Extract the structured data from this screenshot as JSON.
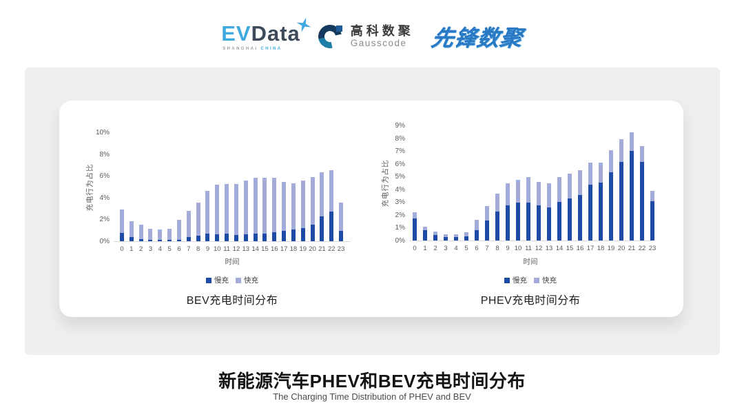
{
  "header": {
    "evdata": {
      "ev": "EV",
      "data": "Data",
      "sub_left": "SHANGHAI",
      "sub_right": "CHINA"
    },
    "gausscode": {
      "cn": "高科数聚",
      "en": "Gausscode"
    },
    "xianfeng": {
      "text": "先锋数聚"
    }
  },
  "footer": {
    "title": "新能源汽车PHEV和BEV充电时间分布",
    "subtitle": "The Charging Time Distribution of PHEV and BEV"
  },
  "colors": {
    "slow_charge": "#1e4ba6",
    "fast_charge": "#a2abda",
    "panel_gray": "#efefef",
    "axis_text": "#595959",
    "evdata_blue": "#3fa9e0",
    "xianfeng_blue": "#2878c4"
  },
  "chart_data": [
    {
      "type": "bar",
      "stacked": true,
      "title": "BEV充电时间分布",
      "xlabel": "时间",
      "ylabel": "充电行为占比",
      "ylim": [
        0,
        10
      ],
      "yticks": [
        "0%",
        "2%",
        "4%",
        "6%",
        "8%",
        "10%"
      ],
      "legend_position": "bottom",
      "grid": false,
      "categories": [
        "0",
        "1",
        "2",
        "3",
        "4",
        "5",
        "6",
        "7",
        "8",
        "9",
        "10",
        "11",
        "12",
        "13",
        "14",
        "15",
        "16",
        "17",
        "18",
        "19",
        "20",
        "21",
        "22",
        "23"
      ],
      "series": [
        {
          "name": "慢充",
          "values": [
            0.75,
            0.35,
            0.2,
            0.1,
            0.1,
            0.1,
            0.15,
            0.35,
            0.5,
            0.7,
            0.65,
            0.7,
            0.6,
            0.65,
            0.7,
            0.7,
            0.8,
            0.95,
            1.05,
            1.2,
            1.5,
            2.3,
            2.7,
            0.95
          ]
        },
        {
          "name": "快充",
          "values": [
            2.15,
            1.5,
            1.35,
            1.05,
            0.95,
            1.05,
            1.8,
            2.45,
            3.05,
            3.95,
            4.55,
            4.55,
            4.65,
            4.95,
            5.1,
            5.1,
            5.05,
            4.5,
            4.25,
            4.4,
            4.4,
            4.05,
            3.85,
            2.6
          ]
        }
      ]
    },
    {
      "type": "bar",
      "stacked": true,
      "title": "PHEV充电时间分布",
      "xlabel": "时间",
      "ylabel": "充电行为占比",
      "ylim": [
        0,
        9
      ],
      "yticks": [
        "0%",
        "1%",
        "2%",
        "3%",
        "4%",
        "5%",
        "6%",
        "7%",
        "8%",
        "9%"
      ],
      "legend_position": "bottom",
      "grid": false,
      "categories": [
        "0",
        "1",
        "2",
        "3",
        "4",
        "5",
        "6",
        "7",
        "8",
        "9",
        "10",
        "11",
        "12",
        "13",
        "14",
        "15",
        "16",
        "17",
        "18",
        "19",
        "20",
        "21",
        "22",
        "23"
      ],
      "series": [
        {
          "name": "慢充",
          "values": [
            1.75,
            0.8,
            0.45,
            0.25,
            0.25,
            0.3,
            0.8,
            1.55,
            2.25,
            2.75,
            2.95,
            2.95,
            2.75,
            2.6,
            3.0,
            3.3,
            3.55,
            4.35,
            4.5,
            5.35,
            6.15,
            7.0,
            6.15,
            3.05
          ]
        },
        {
          "name": "快充",
          "values": [
            0.45,
            0.3,
            0.25,
            0.25,
            0.25,
            0.35,
            0.8,
            1.15,
            1.4,
            1.75,
            1.8,
            2.0,
            1.85,
            1.85,
            1.95,
            1.95,
            1.95,
            1.75,
            1.6,
            1.7,
            1.75,
            1.45,
            1.25,
            0.85
          ]
        }
      ]
    }
  ]
}
